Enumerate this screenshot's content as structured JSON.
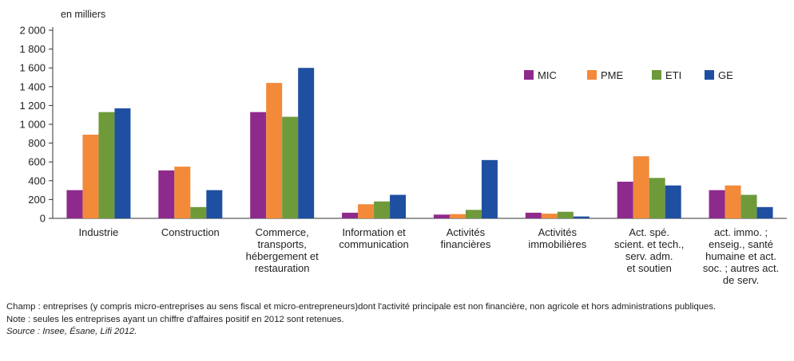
{
  "chart_data": {
    "type": "bar",
    "ylabel": "en milliers",
    "ylim": [
      0,
      2000
    ],
    "yticks": [
      {
        "value": 0,
        "label": "0"
      },
      {
        "value": 200,
        "label": "200"
      },
      {
        "value": 400,
        "label": "400"
      },
      {
        "value": 600,
        "label": "600"
      },
      {
        "value": 800,
        "label": "800"
      },
      {
        "value": 1000,
        "label": "1 000"
      },
      {
        "value": 1200,
        "label": "1 200"
      },
      {
        "value": 1400,
        "label": "1 400"
      },
      {
        "value": 1600,
        "label": "1 600"
      },
      {
        "value": 1800,
        "label": "1 800"
      },
      {
        "value": 2000,
        "label": "2 000"
      }
    ],
    "grid": false,
    "legend": "top-right",
    "categories": [
      [
        "Industrie"
      ],
      [
        "Construction"
      ],
      [
        "Commerce,",
        "transports,",
        "hébergement et",
        "restauration"
      ],
      [
        "Information et",
        "communication"
      ],
      [
        "Activités",
        "financières"
      ],
      [
        "Activités",
        "immobilières"
      ],
      [
        "Act. spé.",
        "scient. et tech.,",
        "serv. adm.",
        "et soutien"
      ],
      [
        "act. immo. ;",
        "enseig., santé",
        "humaine et act.",
        "soc. ; autres act.",
        "de serv."
      ]
    ],
    "series": [
      {
        "name": "MIC",
        "color": "#8e2a8c",
        "values": [
          300,
          510,
          1130,
          60,
          40,
          60,
          390,
          300
        ]
      },
      {
        "name": "PME",
        "color": "#f28a3a",
        "values": [
          890,
          550,
          1440,
          150,
          45,
          50,
          660,
          350
        ]
      },
      {
        "name": "ETI",
        "color": "#6e9a3a",
        "values": [
          1130,
          120,
          1080,
          180,
          90,
          70,
          430,
          250
        ]
      },
      {
        "name": "GE",
        "color": "#1f4fa0",
        "values": [
          1170,
          300,
          1600,
          250,
          620,
          20,
          350,
          120
        ]
      }
    ]
  },
  "notes": {
    "champ": "Champ : entreprises (y compris micro-entreprises au sens fiscal et micro-entrepreneurs)dont l'activité principale est non financière, non agricole et hors administrations publiques.",
    "note": "Note : seules les entreprises ayant un chiffre d'affaires positif en 2012 sont retenues.",
    "source": "Source : Insee, Ésane, Lifi 2012."
  }
}
